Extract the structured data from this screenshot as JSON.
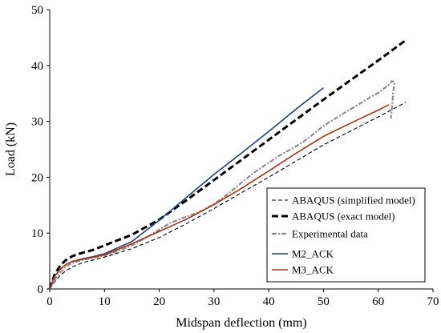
{
  "chart_data": {
    "type": "line",
    "xlabel": "Midspan deflection (mm)",
    "ylabel": "Load (kN)",
    "xlim": [
      0,
      70
    ],
    "ylim": [
      0,
      50
    ],
    "xticks": [
      0,
      10,
      20,
      30,
      40,
      50,
      60,
      70
    ],
    "yticks": [
      0,
      10,
      20,
      30,
      40,
      50
    ],
    "grid": false,
    "legend_position": "bottom-right",
    "series": [
      {
        "name": "ABAQUS (simplified model)",
        "color": "#000000",
        "style": "dashed-thin",
        "x": [
          0,
          0.5,
          1,
          2,
          3,
          4,
          6,
          8,
          10,
          15,
          20,
          25,
          30,
          35,
          40,
          45,
          50,
          55,
          60,
          65
        ],
        "y": [
          0,
          0.7,
          1.4,
          2.5,
          3.3,
          3.9,
          4.7,
          5.2,
          5.7,
          7.2,
          9.2,
          11.7,
          14.4,
          17.2,
          20.0,
          22.9,
          25.8,
          28.3,
          30.8,
          33.4
        ]
      },
      {
        "name": "ABAQUS (exact model)",
        "color": "#000000",
        "style": "dashed-thick",
        "x": [
          0,
          0.5,
          1,
          2,
          3,
          4,
          5,
          8,
          10,
          15,
          20,
          25,
          30,
          35,
          40,
          45,
          50,
          55,
          60,
          65
        ],
        "y": [
          0,
          1.5,
          2.8,
          4.3,
          5.2,
          5.8,
          6.2,
          7.0,
          7.8,
          9.7,
          12.4,
          15.9,
          19.5,
          23.1,
          26.7,
          30.3,
          33.9,
          37.4,
          40.9,
          44.5
        ]
      },
      {
        "name": "Experimental data",
        "color": "#8c8c8c",
        "style": "dash-dot",
        "x": [
          0,
          0.5,
          1,
          2,
          3,
          4,
          6,
          8,
          10,
          12,
          14,
          16,
          18,
          20,
          22,
          24,
          26,
          28,
          30,
          32,
          34,
          36,
          38,
          40,
          42,
          44,
          46,
          48,
          50,
          52,
          54,
          56,
          58,
          60,
          62,
          62.5,
          63,
          62.7,
          62.6,
          62.3
        ],
        "y": [
          0,
          1.0,
          1.8,
          3.0,
          4.0,
          4.6,
          5.2,
          5.6,
          6.0,
          6.6,
          7.4,
          8.3,
          9.4,
          10.6,
          11.8,
          12.6,
          13.3,
          14.1,
          15.2,
          16.6,
          18.2,
          19.8,
          21.3,
          22.6,
          23.9,
          25.0,
          26.1,
          27.6,
          29.2,
          30.4,
          31.6,
          32.8,
          34.0,
          35.1,
          36.6,
          37.2,
          37.0,
          35.2,
          33.5,
          30.5
        ]
      },
      {
        "name": "M2_ACK",
        "color": "#1f3f7a",
        "style": "solid",
        "x": [
          0,
          0.5,
          1,
          2,
          3,
          4,
          6,
          8,
          10,
          15,
          20,
          25,
          30,
          35,
          40,
          45,
          50
        ],
        "y": [
          0,
          1.3,
          2.4,
          3.6,
          4.4,
          4.9,
          5.4,
          5.8,
          6.3,
          8.5,
          12.3,
          16.4,
          20.5,
          24.3,
          28.2,
          32.2,
          36.0
        ]
      },
      {
        "name": "M3_ACK",
        "color": "#a83418",
        "style": "solid",
        "x": [
          0,
          0.5,
          1,
          2,
          3,
          4,
          6,
          8,
          10,
          15,
          20,
          25,
          30,
          35,
          40,
          45,
          50,
          55,
          60,
          62
        ],
        "y": [
          0,
          1.3,
          2.4,
          3.6,
          4.4,
          4.9,
          5.3,
          5.7,
          6.1,
          8.1,
          10.3,
          12.5,
          15.1,
          18.0,
          21.1,
          24.3,
          27.3,
          29.7,
          32.0,
          33.0
        ]
      }
    ]
  }
}
